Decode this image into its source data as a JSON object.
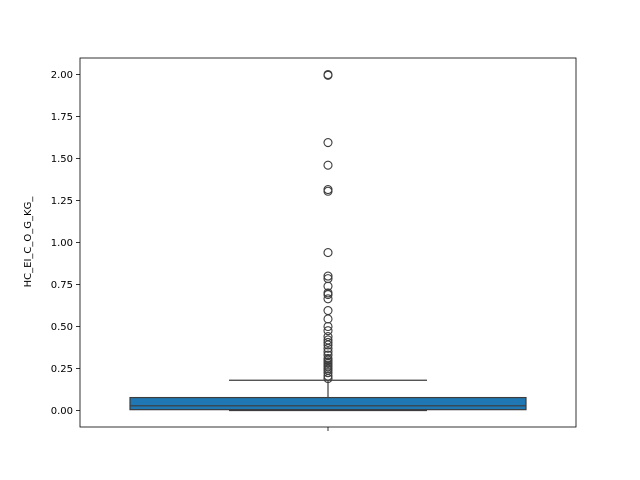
{
  "chart_data": {
    "type": "box",
    "ylabel": "HC_EI_C_O_G_KG_",
    "xlabel": "",
    "ylim": [
      -0.09,
      2.1
    ],
    "yticks": [
      0.0,
      0.25,
      0.5,
      0.75,
      1.0,
      1.25,
      1.5,
      1.75,
      2.0
    ],
    "ytick_labels": [
      "0.00",
      "0.25",
      "0.50",
      "0.75",
      "1.00",
      "1.25",
      "1.50",
      "1.75",
      "2.00"
    ],
    "box": {
      "whisker_low": 0.0,
      "q1": 0.005,
      "median": 0.028,
      "q3": 0.077,
      "whisker_high": 0.18
    },
    "outliers": [
      2.0,
      1.995,
      1.595,
      1.46,
      1.315,
      1.305,
      0.94,
      0.8,
      0.785,
      0.74,
      0.7,
      0.69,
      0.665,
      0.595,
      0.545,
      0.5,
      0.475,
      0.44,
      0.42,
      0.405,
      0.39,
      0.37,
      0.35,
      0.33,
      0.31,
      0.3,
      0.29,
      0.28,
      0.27,
      0.26,
      0.25,
      0.24,
      0.225,
      0.205,
      0.19
    ],
    "colors": {
      "box_fill": "#1f77b4",
      "line": "#3d3d3d"
    }
  }
}
